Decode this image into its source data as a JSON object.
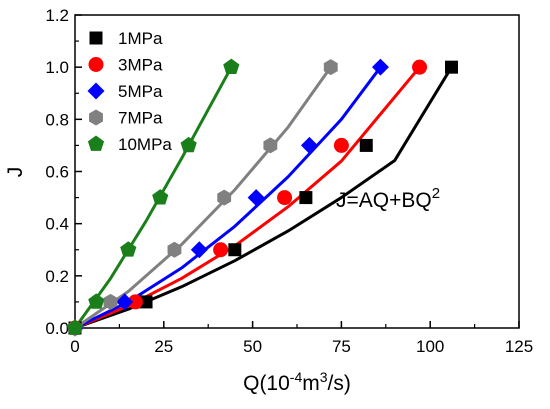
{
  "chart_data": {
    "type": "scatter",
    "title": "",
    "xlabel": "Q(10⁻⁴m³/s)",
    "ylabel": "J",
    "xlim": [
      0,
      125
    ],
    "ylim": [
      0,
      1.2
    ],
    "xticks": [
      0,
      25,
      50,
      75,
      100,
      125
    ],
    "yticks": [
      0.0,
      0.2,
      0.4,
      0.6,
      0.8,
      1.0,
      1.2
    ],
    "grid": false,
    "legend_position": "top-left",
    "annotation": "J=AQ+BQ²",
    "series": [
      {
        "name": "1MPa",
        "color": "#000000",
        "marker": "square",
        "points": [
          [
            0,
            0
          ],
          [
            20,
            0.1
          ],
          [
            45,
            0.3
          ],
          [
            65,
            0.5
          ],
          [
            82,
            0.7
          ],
          [
            106,
            1.0
          ]
        ],
        "fit": [
          [
            0,
            0
          ],
          [
            15,
            0.072
          ],
          [
            30,
            0.158
          ],
          [
            45,
            0.258
          ],
          [
            60,
            0.372
          ],
          [
            75,
            0.5
          ],
          [
            90,
            0.642
          ],
          [
            106,
            1.0
          ]
        ]
      },
      {
        "name": "3MPa",
        "color": "#ff0000",
        "marker": "circle",
        "points": [
          [
            0,
            0
          ],
          [
            17,
            0.1
          ],
          [
            41,
            0.3
          ],
          [
            59,
            0.5
          ],
          [
            75,
            0.7
          ],
          [
            97,
            1.0
          ]
        ],
        "fit": [
          [
            0,
            0
          ],
          [
            15,
            0.085
          ],
          [
            30,
            0.19
          ],
          [
            45,
            0.315
          ],
          [
            60,
            0.465
          ],
          [
            75,
            0.64
          ],
          [
            97,
            1.0
          ]
        ]
      },
      {
        "name": "5MPa",
        "color": "#0000ff",
        "marker": "diamond",
        "points": [
          [
            0,
            0
          ],
          [
            14,
            0.1
          ],
          [
            35,
            0.3
          ],
          [
            51,
            0.5
          ],
          [
            66,
            0.7
          ],
          [
            86,
            1.0
          ]
        ],
        "fit": [
          [
            0,
            0
          ],
          [
            15,
            0.1
          ],
          [
            30,
            0.23
          ],
          [
            45,
            0.39
          ],
          [
            60,
            0.58
          ],
          [
            75,
            0.8
          ],
          [
            86,
            1.0
          ]
        ]
      },
      {
        "name": "7MPa",
        "color": "#808080",
        "marker": "hexagon",
        "points": [
          [
            0,
            0
          ],
          [
            10,
            0.1
          ],
          [
            28,
            0.3
          ],
          [
            42,
            0.5
          ],
          [
            55,
            0.7
          ],
          [
            72,
            1.0
          ]
        ],
        "fit": [
          [
            0,
            0
          ],
          [
            15,
            0.14
          ],
          [
            30,
            0.32
          ],
          [
            45,
            0.53
          ],
          [
            60,
            0.77
          ],
          [
            72,
            1.0
          ]
        ]
      },
      {
        "name": "10MPa",
        "color": "#1a7f1a",
        "marker": "pentagon",
        "points": [
          [
            0,
            0
          ],
          [
            6,
            0.1
          ],
          [
            15,
            0.3
          ],
          [
            24,
            0.5
          ],
          [
            32,
            0.7
          ],
          [
            44,
            1.0
          ]
        ],
        "fit": [
          [
            0,
            0
          ],
          [
            10,
            0.19
          ],
          [
            20,
            0.41
          ],
          [
            30,
            0.65
          ],
          [
            44,
            1.0
          ]
        ]
      }
    ]
  }
}
